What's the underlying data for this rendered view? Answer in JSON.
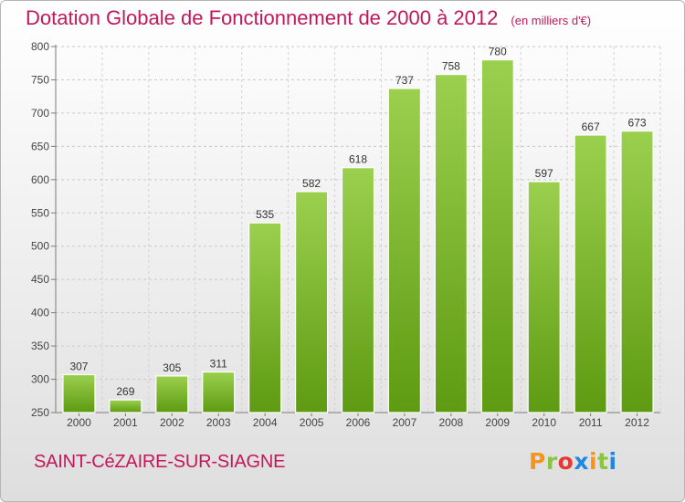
{
  "header": {
    "title": "Dotation Globale de Fonctionnement de 2000 à 2012",
    "subtitle": "(en milliers d'€)"
  },
  "footer": {
    "commune": "SAINT-CéZAIRE-SUR-SIAGNE",
    "logo": "Proxiti",
    "logo_colors": [
      "#f7941d",
      "#8cc63f",
      "#e53935",
      "#1e88e5",
      "#f7941d",
      "#8cc63f",
      "#1e88e5"
    ]
  },
  "chart_data": {
    "type": "bar",
    "title": "Dotation Globale de Fonctionnement de 2000 à 2012",
    "subtitle": "(en milliers d'€)",
    "categories": [
      "2000",
      "2001",
      "2002",
      "2003",
      "2004",
      "2005",
      "2006",
      "2007",
      "2008",
      "2009",
      "2010",
      "2011",
      "2012"
    ],
    "values": [
      307,
      269,
      305,
      311,
      535,
      582,
      618,
      737,
      758,
      780,
      597,
      667,
      673
    ],
    "ylim": [
      250,
      800
    ],
    "yticks": [
      250,
      300,
      350,
      400,
      450,
      500,
      550,
      600,
      650,
      700,
      750,
      800
    ],
    "grid": true,
    "bar_color": "#8cc63f",
    "bar_color_dark": "#5e9a12"
  }
}
